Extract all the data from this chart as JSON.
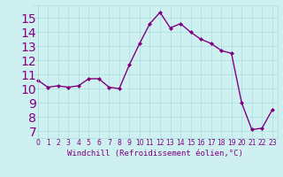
{
  "x": [
    0,
    1,
    2,
    3,
    4,
    5,
    6,
    7,
    8,
    9,
    10,
    11,
    12,
    13,
    14,
    15,
    16,
    17,
    18,
    19,
    20,
    21,
    22,
    23
  ],
  "y": [
    10.6,
    10.1,
    10.2,
    10.1,
    10.2,
    10.7,
    10.7,
    10.1,
    10.0,
    11.7,
    13.2,
    14.6,
    15.4,
    14.3,
    14.6,
    14.0,
    13.5,
    13.2,
    12.7,
    12.5,
    9.0,
    7.1,
    7.2,
    8.5
  ],
  "line_color": "#800080",
  "marker": "D",
  "marker_size": 2,
  "bg_color": "#cff0f0",
  "grid_color": "#aadddd",
  "xlabel": "Windchill (Refroidissement éolien,°C)",
  "xlim": [
    -0.5,
    23.5
  ],
  "ylim": [
    6.5,
    15.9
  ],
  "yticks": [
    7,
    8,
    9,
    10,
    11,
    12,
    13,
    14,
    15
  ],
  "xticks": [
    0,
    1,
    2,
    3,
    4,
    5,
    6,
    7,
    8,
    9,
    10,
    11,
    12,
    13,
    14,
    15,
    16,
    17,
    18,
    19,
    20,
    21,
    22,
    23
  ],
  "font_color": "#800080",
  "line_width": 1.0,
  "tick_fontsize": 5.5,
  "xlabel_fontsize": 6.5
}
